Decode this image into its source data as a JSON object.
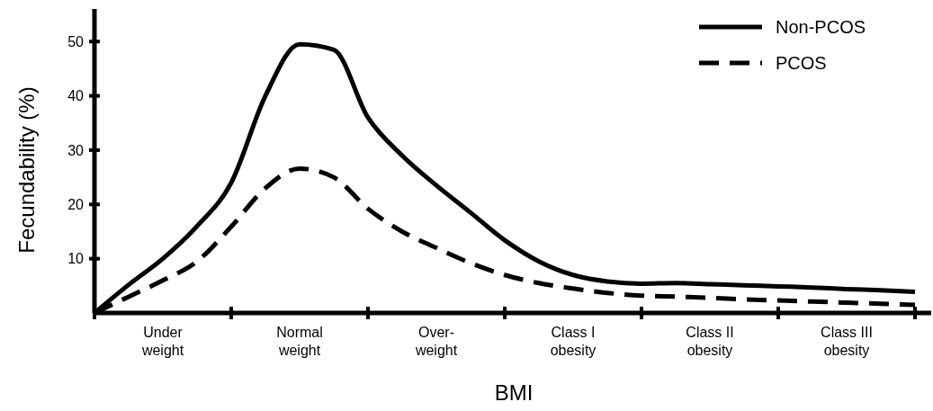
{
  "chart_data": {
    "type": "line",
    "xlabel": "BMI",
    "ylabel": "Fecundability (%)",
    "ylim": [
      0,
      56
    ],
    "categories": [
      null,
      null,
      "Under\nweight",
      null,
      null,
      null,
      "Normal\nweight",
      null,
      null,
      null,
      "Over-\nweight",
      null,
      null,
      null,
      "Class I\nobesity",
      null,
      null,
      null,
      "Class II\nobesity",
      null,
      null,
      null,
      "Class III\nobesity",
      null,
      null
    ],
    "yticks": [
      10,
      20,
      30,
      40,
      50
    ],
    "legend": "top right",
    "series": [
      {
        "name": "Non-PCOS",
        "color": "#000000",
        "line_style": "solid",
        "values": [
          0,
          5.2,
          10,
          16,
          24,
          40,
          49.5,
          48.5,
          36,
          29,
          23.5,
          18.5,
          13.4,
          9.5,
          7,
          5.8,
          5.4,
          5.5,
          5.3,
          5.1,
          4.9,
          4.7,
          4.4,
          4.2,
          3.9
        ]
      },
      {
        "name": "PCOS",
        "color": "#000000",
        "line_style": "dashed",
        "values": [
          0,
          3,
          6,
          9.5,
          15.9,
          23,
          26.6,
          25,
          19.2,
          15,
          12,
          9.2,
          7,
          5.5,
          4.5,
          3.7,
          3.2,
          3,
          2.8,
          2.5,
          2.3,
          2.1,
          1.9,
          1.7,
          1.5
        ]
      }
    ]
  }
}
